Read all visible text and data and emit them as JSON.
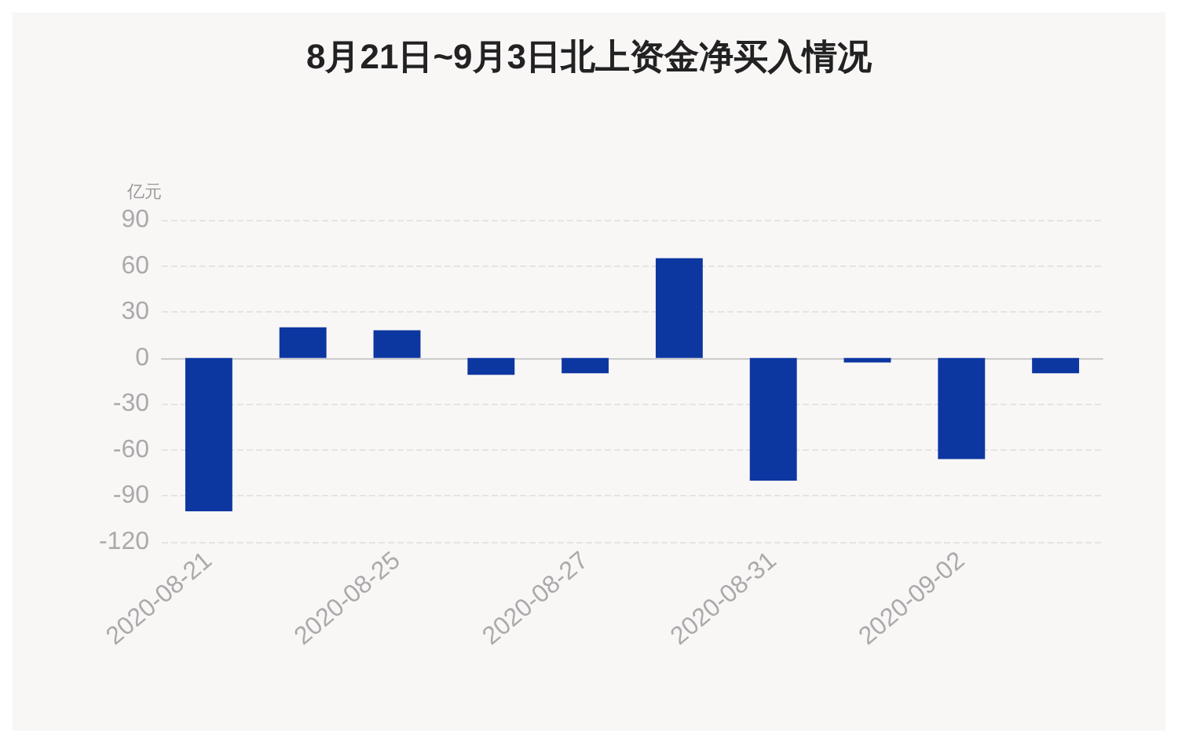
{
  "chart_data": {
    "type": "bar",
    "title": "8月21日~9月3日北上资金净买入情况",
    "ylabel": "亿元",
    "categories": [
      "2020-08-21",
      null,
      "2020-08-25",
      null,
      "2020-08-27",
      null,
      "2020-08-31",
      null,
      "2020-09-02",
      null
    ],
    "values": [
      -100,
      20,
      18,
      -11,
      -10,
      65,
      -80,
      -3,
      -66,
      -10
    ],
    "color": "#0d37a0",
    "ylim": [
      -120,
      90
    ],
    "yticks": [
      -120,
      -90,
      -60,
      -30,
      0,
      30,
      60,
      90
    ],
    "grid": "y"
  }
}
